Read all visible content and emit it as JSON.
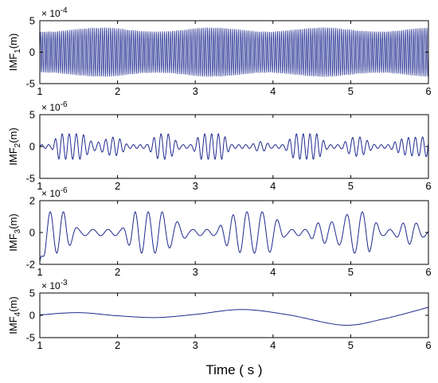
{
  "chart_data": {
    "type": "line",
    "xlabel": "Time ( s )",
    "line_color": "#1f2a8f",
    "panels": [
      {
        "name": "IMF1",
        "ylabel_main": "IMF",
        "ylabel_sub": "1",
        "ylabel_unit": "(m)",
        "exponent_base": "× 10",
        "exponent_power": "-4",
        "ylim": [
          -5,
          5
        ],
        "yticks": [
          "5",
          "0",
          "-5"
        ],
        "xlim": [
          1,
          6
        ],
        "xticks": [
          "1",
          "2",
          "3",
          "4",
          "5",
          "6"
        ],
        "signal": {
          "freq_hz": 40,
          "amplitude": 4.0,
          "samples": 2400
        }
      },
      {
        "name": "IMF2",
        "ylabel_main": "IMF",
        "ylabel_sub": "2",
        "ylabel_unit": "(m)",
        "exponent_base": "× 10",
        "exponent_power": "-6",
        "ylim": [
          -5,
          5
        ],
        "yticks": [
          "5",
          "0",
          "-5"
        ],
        "xlim": [
          1,
          6
        ],
        "xticks": [
          "1",
          "2",
          "3",
          "4",
          "5",
          "6"
        ],
        "signal": {
          "freq_hz": 11,
          "amplitude": 2.0,
          "samples": 1500
        }
      },
      {
        "name": "IMF3",
        "ylabel_main": "IMF",
        "ylabel_sub": "3",
        "ylabel_unit": "(m)",
        "exponent_base": "× 10",
        "exponent_power": "-6",
        "ylim": [
          -2,
          2
        ],
        "yticks": [
          "2",
          "0",
          "-2"
        ],
        "xlim": [
          1,
          6
        ],
        "xticks": [
          "1",
          "2",
          "3",
          "4",
          "5",
          "6"
        ],
        "signal": {
          "freq_hz": 5.5,
          "amplitude": 1.3,
          "samples": 900
        }
      },
      {
        "name": "IMF4",
        "ylabel_main": "IMF",
        "ylabel_sub": "4",
        "ylabel_unit": "(m)",
        "exponent_base": "× 10",
        "exponent_power": "-3",
        "ylim": [
          -5,
          5
        ],
        "yticks": [
          "5",
          "0",
          "-5"
        ],
        "xlim": [
          1,
          6
        ],
        "xticks": [
          "1",
          "2",
          "3",
          "4",
          "5",
          "6"
        ],
        "points": [
          [
            1.0,
            0.1
          ],
          [
            1.5,
            0.6
          ],
          [
            2.0,
            -0.1
          ],
          [
            2.5,
            -0.5
          ],
          [
            3.0,
            0.2
          ],
          [
            3.6,
            1.3
          ],
          [
            4.2,
            0.1
          ],
          [
            4.9,
            -2.2
          ],
          [
            5.4,
            -0.9
          ],
          [
            6.0,
            1.8
          ]
        ]
      }
    ]
  }
}
